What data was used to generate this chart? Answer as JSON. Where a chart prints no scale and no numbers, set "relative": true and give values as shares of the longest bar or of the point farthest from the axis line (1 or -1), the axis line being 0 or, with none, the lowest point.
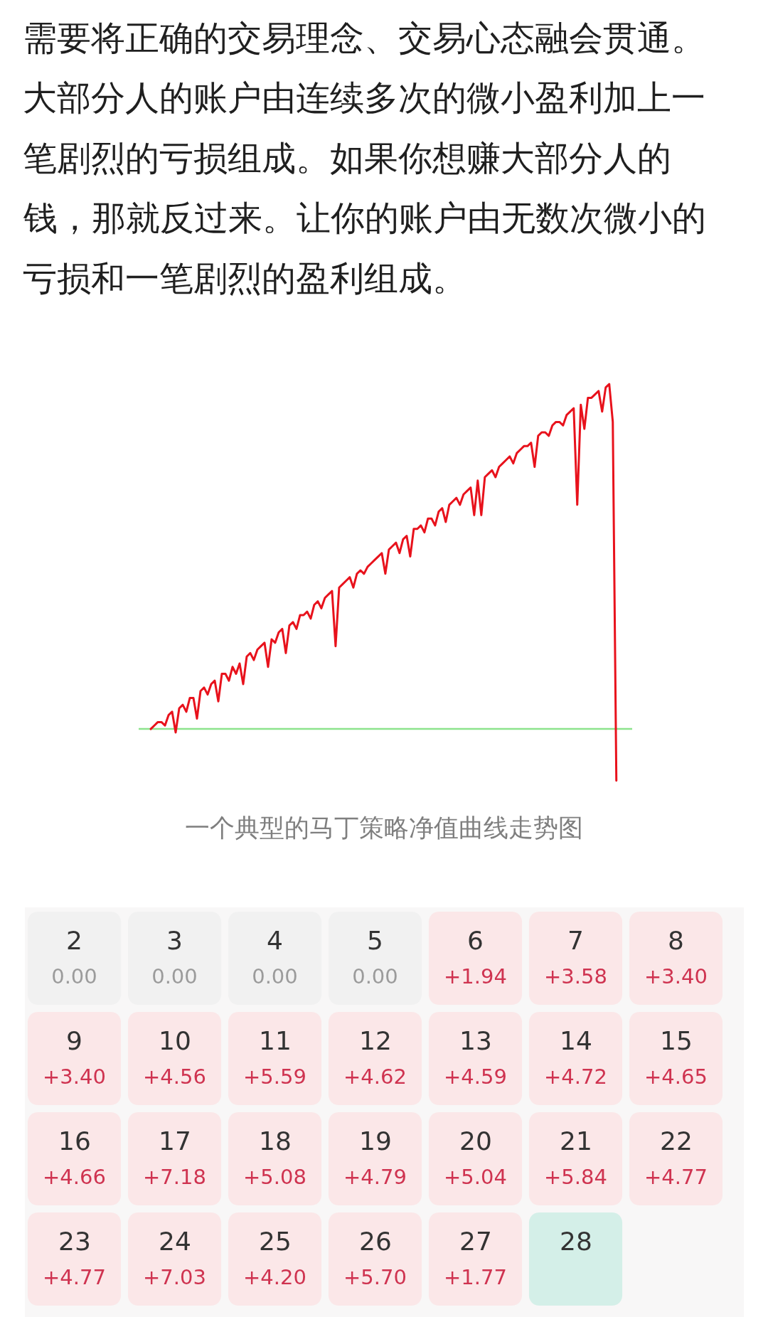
{
  "chart_data": [
    {
      "type": "line",
      "title": "需要将正确的交易理念、交易心态融会贯通。大部分人的账户由连续多次的微小盈利加上一笔剧烈的亏损组成。如果你想赚大部分人的钱，那就反过来。让你的账户由无数次微小的亏损和一笔剧烈的盈利组成。",
      "annotations": [
        "一个典型的马丁策略净值曲线走势图"
      ],
      "relative": true,
      "categories": [
        null,
        null,
        null,
        null,
        null,
        null,
        null,
        null,
        null,
        null,
        null,
        null,
        null,
        null,
        null,
        null,
        null,
        null,
        null,
        null,
        null,
        null,
        null,
        null,
        null,
        null,
        null,
        null,
        null,
        null,
        null,
        null,
        null,
        null,
        null,
        null,
        null,
        null,
        null,
        null,
        null,
        null,
        null,
        null,
        null,
        null,
        null,
        null,
        null,
        null,
        null,
        null,
        null,
        null,
        null,
        null,
        null,
        null,
        null,
        null,
        null,
        null,
        null,
        null,
        null,
        null,
        null,
        null,
        null,
        null,
        null,
        null,
        null,
        null,
        null,
        null,
        null,
        null,
        null,
        null,
        null,
        null,
        null,
        null,
        null,
        null,
        null,
        null,
        null,
        null,
        null,
        null,
        null,
        null,
        null,
        null,
        null,
        null,
        null,
        null,
        null,
        null,
        null,
        null,
        null,
        null,
        null,
        null,
        null,
        null,
        null,
        null,
        null,
        null,
        null,
        null,
        null,
        null,
        null,
        null,
        null,
        null,
        null,
        null,
        null,
        null,
        null,
        null,
        null,
        null,
        null,
        null
      ],
      "series": [
        {
          "color": "#e8121c",
          "values": [
            0.0,
            0.01,
            0.02,
            0.02,
            0.01,
            0.04,
            0.05,
            -0.01,
            0.06,
            0.07,
            0.05,
            0.09,
            0.09,
            0.03,
            0.11,
            0.12,
            0.1,
            0.13,
            0.14,
            0.08,
            0.16,
            0.16,
            0.14,
            0.18,
            0.16,
            0.19,
            0.13,
            0.21,
            0.22,
            0.2,
            0.23,
            0.24,
            0.25,
            0.18,
            0.26,
            0.25,
            0.28,
            0.29,
            0.22,
            0.3,
            0.31,
            0.29,
            0.33,
            0.33,
            0.34,
            0.32,
            0.36,
            0.37,
            0.35,
            0.38,
            0.39,
            0.4,
            0.24,
            0.41,
            0.42,
            0.43,
            0.44,
            0.41,
            0.45,
            0.46,
            0.45,
            0.47,
            0.48,
            0.49,
            0.5,
            0.51,
            0.45,
            0.52,
            0.53,
            0.54,
            0.51,
            0.55,
            0.56,
            0.5,
            0.58,
            0.58,
            0.59,
            0.57,
            0.61,
            0.61,
            0.59,
            0.63,
            0.64,
            0.6,
            0.65,
            0.66,
            0.67,
            0.65,
            0.68,
            0.69,
            0.7,
            0.62,
            0.72,
            0.62,
            0.73,
            0.74,
            0.75,
            0.73,
            0.76,
            0.77,
            0.78,
            0.79,
            0.77,
            0.8,
            0.81,
            0.82,
            0.82,
            0.83,
            0.76,
            0.85,
            0.86,
            0.86,
            0.85,
            0.88,
            0.89,
            0.89,
            0.88,
            0.91,
            0.92,
            0.93,
            0.65,
            0.94,
            0.87,
            0.96,
            0.96,
            0.97,
            0.98,
            0.92,
            0.99,
            1.0,
            0.89,
            -0.15
          ]
        }
      ],
      "ref_lines": [
        {
          "axis": "y",
          "value": 0,
          "color": "#8de38d"
        }
      ]
    },
    {
      "type": "heatmap",
      "categories": [
        null,
        null,
        null,
        null,
        null,
        null,
        null
      ],
      "y_categories": [
        null,
        null,
        null,
        null
      ],
      "cells": [
        [
          0.0,
          0.0,
          0.0,
          0.0,
          1.94,
          3.58,
          3.4
        ],
        [
          3.4,
          4.56,
          5.59,
          4.62,
          4.59,
          4.72,
          4.65
        ],
        [
          4.66,
          7.18,
          5.08,
          4.79,
          5.04,
          5.84,
          4.77
        ],
        [
          4.77,
          7.03,
          4.2,
          5.7,
          1.77,
          null,
          null
        ]
      ],
      "cell_labels": [
        [
          "0.00",
          "0.00",
          "0.00",
          "0.00",
          "+1.94",
          "+3.58",
          "+3.40"
        ],
        [
          "+3.40",
          "+4.56",
          "+5.59",
          "+4.62",
          "+4.59",
          "+4.72",
          "+4.65"
        ],
        [
          "+4.66",
          "+7.18",
          "+5.08",
          "+4.79",
          "+5.04",
          "+5.84",
          "+4.77"
        ],
        [
          "+4.77",
          "+7.03",
          "+4.20",
          "+5.70",
          "+1.77",
          null,
          null
        ]
      ],
      "colors": [
        [
          "#f1f1f1",
          "#f1f1f1",
          "#f1f1f1",
          "#f1f1f1",
          "#fbe7e8",
          "#fbe7e8",
          "#fbe7e8"
        ],
        [
          "#fbe7e8",
          "#fbe7e8",
          "#fbe7e8",
          "#fbe7e8",
          "#fbe7e8",
          "#fbe7e8",
          "#fbe7e8"
        ],
        [
          "#fbe7e8",
          "#fbe7e8",
          "#fbe7e8",
          "#fbe7e8",
          "#fbe7e8",
          "#fbe7e8",
          "#fbe7e8"
        ],
        [
          "#fbe7e8",
          "#fbe7e8",
          "#fbe7e8",
          "#fbe7e8",
          "#fbe7e8",
          "#d4efe8",
          null
        ]
      ],
      "annotations": [
        "2 3 4 5 6 7 8",
        "9 10 11 12 13 14 15",
        "16 17 18 19 20 21 22",
        "23 24 25 26 27 28"
      ]
    }
  ]
}
